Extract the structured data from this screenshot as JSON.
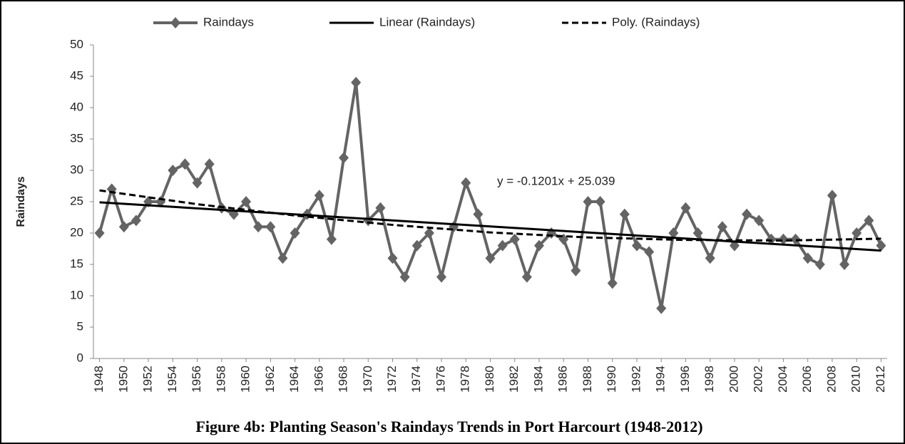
{
  "chart_data": {
    "type": "line",
    "title": "Figure 4b: Planting Season's Raindays Trends in Port Harcourt (1948-2012)",
    "y_label": "Raindays",
    "annotation": "y = -0.1201x + 25.039",
    "x": [
      1948,
      1949,
      1950,
      1951,
      1952,
      1953,
      1954,
      1955,
      1956,
      1957,
      1958,
      1959,
      1960,
      1961,
      1962,
      1963,
      1964,
      1965,
      1966,
      1967,
      1968,
      1969,
      1970,
      1971,
      1972,
      1973,
      1974,
      1975,
      1976,
      1977,
      1978,
      1979,
      1980,
      1981,
      1982,
      1983,
      1984,
      1985,
      1986,
      1987,
      1988,
      1989,
      1990,
      1991,
      1992,
      1993,
      1994,
      1995,
      1996,
      1997,
      1998,
      1999,
      2000,
      2001,
      2002,
      2003,
      2004,
      2005,
      2006,
      2007,
      2008,
      2009,
      2010,
      2011,
      2012
    ],
    "xlim": [
      1947.5,
      2012.5
    ],
    "xticks": [
      1948,
      1950,
      1952,
      1954,
      1956,
      1958,
      1960,
      1962,
      1964,
      1966,
      1968,
      1970,
      1972,
      1974,
      1976,
      1978,
      1980,
      1982,
      1984,
      1986,
      1988,
      1990,
      1992,
      1994,
      1996,
      1998,
      2000,
      2002,
      2004,
      2006,
      2008,
      2010,
      2012
    ],
    "ylim": [
      0,
      50
    ],
    "yticks": [
      0,
      5,
      10,
      15,
      20,
      25,
      30,
      35,
      40,
      45,
      50
    ],
    "grid": false,
    "legend": "top",
    "series": [
      {
        "name": "Raindays",
        "color": "#646464",
        "marker": "diamond",
        "line_style": "solid",
        "values": [
          20,
          27,
          21,
          22,
          25,
          25,
          30,
          31,
          28,
          31,
          24,
          23,
          25,
          21,
          21,
          16,
          20,
          23,
          26,
          19,
          32,
          44,
          22,
          24,
          16,
          13,
          18,
          20,
          13,
          21,
          28,
          23,
          16,
          18,
          19,
          13,
          18,
          20,
          19,
          14,
          25,
          25,
          12,
          23,
          18,
          17,
          8,
          20,
          24,
          20,
          16,
          21,
          18,
          23,
          22,
          19,
          19,
          19,
          16,
          15,
          26,
          15,
          20,
          22,
          18
        ]
      },
      {
        "name": "Linear (Raindays)",
        "color": "#000000",
        "line_style": "solid",
        "x": [
          1948,
          2012
        ],
        "values": [
          24.9,
          17.2
        ]
      },
      {
        "name": "Poly. (Raindays)",
        "color": "#000000",
        "line_style": "dashed",
        "x": [
          1948,
          1956,
          1964,
          1972,
          1980,
          1988,
          1996,
          2004,
          2012
        ],
        "values": [
          26.8,
          24.6,
          22.8,
          21.3,
          20.1,
          19.3,
          18.9,
          18.8,
          19.1
        ]
      }
    ]
  }
}
